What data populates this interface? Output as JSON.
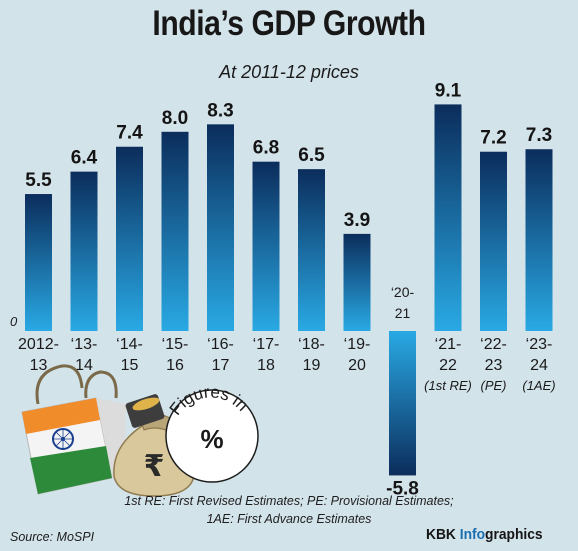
{
  "title": "India’s GDP Growth",
  "subtitle": "At 2011-12 prices",
  "chart_data": {
    "type": "bar",
    "categories": [
      "2012-13",
      "‘13-14",
      "‘14-15",
      "‘15-16",
      "‘16-17",
      "‘17-18",
      "‘18-19",
      "‘19-20",
      "‘20-21",
      "‘21-22",
      "‘22-23",
      "‘23-24"
    ],
    "category_lines": [
      [
        "2012-",
        "13"
      ],
      [
        "‘13-",
        "14"
      ],
      [
        "‘14-",
        "15"
      ],
      [
        "‘15-",
        "16"
      ],
      [
        "‘16-",
        "17"
      ],
      [
        "‘17-",
        "18"
      ],
      [
        "‘18-",
        "19"
      ],
      [
        "‘19-",
        "20"
      ],
      [
        "‘20-",
        "21"
      ],
      [
        "‘21-",
        "22",
        "(1st RE)"
      ],
      [
        "‘22-",
        "23",
        "(PE)"
      ],
      [
        "‘23-",
        "24",
        "(1AE)"
      ]
    ],
    "values": [
      5.5,
      6.4,
      7.4,
      8.0,
      8.3,
      6.8,
      6.5,
      3.9,
      -5.8,
      9.1,
      7.2,
      7.3
    ],
    "value_labels": [
      "5.5",
      "6.4",
      "7.4",
      "8.0",
      "8.3",
      "6.8",
      "6.5",
      "3.9",
      "-5.8",
      "9.1",
      "7.2",
      "7.3"
    ],
    "zero_label": "0",
    "ylim": [
      -5.8,
      9.1
    ],
    "xlabel": "",
    "ylabel": "",
    "grid": false,
    "bar_colors": [
      "#0b2d5c",
      "#29a9e4"
    ]
  },
  "badge": {
    "word": "Figures in",
    "symbol": "%"
  },
  "illustration": {
    "icons": [
      "shopping-bag-icon",
      "indian-flag-icon",
      "rupee-money-bag-icon",
      "coin-stack-icon"
    ],
    "currency_symbol": "₹"
  },
  "notes": [
    "1st RE: First Revised Estimates; PE: Provisional Estimates;",
    "1AE: First Advance Estimates"
  ],
  "source": "Source: MoSPI",
  "credit": {
    "part1": "KBK ",
    "part2": "Info",
    "part3": "graphics"
  }
}
